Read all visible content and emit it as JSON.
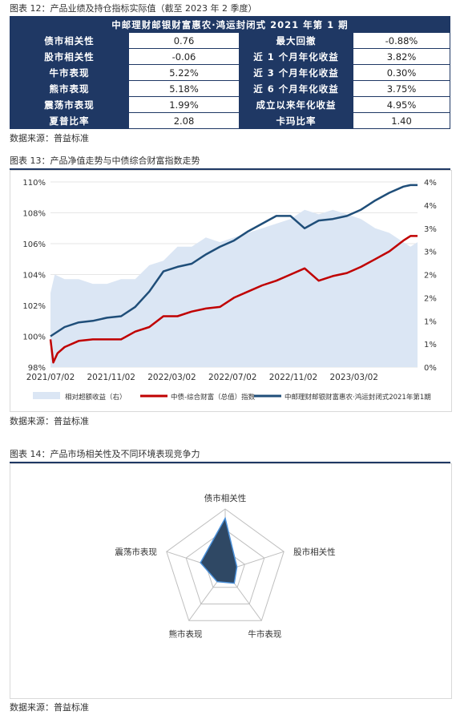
{
  "fig12": {
    "title": "图表 12：产品业绩及持仓指标实际值（截至 2023 年 2 季度）",
    "table_header": "中邮理财邮银财富惠农·鸿运封闭式 2021 年第 1 期",
    "rows": [
      {
        "l1": "债市相关性",
        "v1": "0.76",
        "l2": "最大回撤",
        "v2": "-0.88%"
      },
      {
        "l1": "股市相关性",
        "v1": "-0.06",
        "l2": "近 1 个月年化收益",
        "v2": "3.82%"
      },
      {
        "l1": "牛市表现",
        "v1": "5.22%",
        "l2": "近 3 个月年化收益",
        "v2": "0.30%"
      },
      {
        "l1": "熊市表现",
        "v1": "5.18%",
        "l2": "近 6 个月年化收益",
        "v2": "3.75%"
      },
      {
        "l1": "震荡市表现",
        "v1": "1.99%",
        "l2": "成立以来年化收益",
        "v2": "4.95%"
      },
      {
        "l1": "夏普比率",
        "v1": "2.08",
        "l2": "卡玛比率",
        "v2": "1.40"
      }
    ],
    "source": "数据来源：普益标准"
  },
  "fig13": {
    "title": "图表 13：产品净值走势与中债综合财富指数走势",
    "source": "数据来源：普益标准"
  },
  "fig14": {
    "title": "图表 14：产品市场相关性及不同环境表现竞争力",
    "source": "数据来源：普益标准"
  },
  "chart_data": [
    {
      "type": "line",
      "x_ticks": [
        "2021/07/02",
        "2021/11/02",
        "2022/03/02",
        "2022/07/02",
        "2022/11/02",
        "2023/03/02"
      ],
      "y_left_ticks": [
        "98%",
        "100%",
        "102%",
        "104%",
        "106%",
        "108%",
        "110%"
      ],
      "y_right_ticks": [
        "0%",
        "1%",
        "1%",
        "2%",
        "2%",
        "3%",
        "3%",
        "4%",
        "4%"
      ],
      "ylim_left": [
        98,
        110
      ],
      "ylim_right": [
        0,
        4
      ],
      "x_months_range": [
        0,
        26
      ],
      "grid": true,
      "legend_position": "bottom",
      "colors": {
        "area": "#dbe6f4",
        "index": "#c00000",
        "product": "#1f4e79"
      },
      "series": [
        {
          "name": "相对超额收益（右）",
          "kind": "area",
          "axis": "right",
          "x": [
            0,
            0.3,
            1,
            2,
            3,
            4,
            5,
            6,
            7,
            8,
            9,
            10,
            11,
            12,
            13,
            14,
            15,
            16,
            17,
            18,
            19,
            20,
            21,
            22,
            23,
            24,
            25,
            25.5,
            26
          ],
          "values": [
            1.6,
            2.0,
            1.9,
            1.9,
            1.8,
            1.8,
            1.9,
            1.9,
            2.2,
            2.3,
            2.6,
            2.6,
            2.8,
            2.7,
            2.8,
            2.9,
            3.0,
            3.1,
            3.2,
            3.4,
            3.3,
            3.4,
            3.3,
            3.2,
            3.0,
            2.9,
            2.7,
            2.6,
            2.7
          ]
        },
        {
          "name": "中债-综合财富（总值）指数",
          "kind": "line",
          "axis": "left",
          "x": [
            0,
            0.2,
            0.5,
            1,
            2,
            3,
            4,
            5,
            6,
            7,
            8,
            9,
            10,
            11,
            12,
            13,
            14,
            15,
            16,
            17,
            18,
            19,
            20,
            21,
            22,
            23,
            24,
            25,
            25.5,
            26
          ],
          "values": [
            99.8,
            98.3,
            98.9,
            99.3,
            99.7,
            99.8,
            99.8,
            99.8,
            100.3,
            100.6,
            101.3,
            101.3,
            101.6,
            101.8,
            101.9,
            102.5,
            102.9,
            103.3,
            103.6,
            104.0,
            104.4,
            103.6,
            103.9,
            104.1,
            104.5,
            105.0,
            105.5,
            106.2,
            106.5,
            106.5
          ]
        },
        {
          "name": "中邮理财邮银财富惠农·鸿运封闭式2021年第1期",
          "kind": "line",
          "axis": "left",
          "x": [
            0,
            1,
            2,
            3,
            4,
            5,
            6,
            7,
            8,
            9,
            10,
            11,
            12,
            13,
            14,
            15,
            16,
            17,
            18,
            19,
            20,
            21,
            22,
            23,
            24,
            25,
            25.5,
            26
          ],
          "values": [
            100.0,
            100.6,
            100.9,
            101.0,
            101.2,
            101.3,
            101.9,
            102.9,
            104.2,
            104.5,
            104.7,
            105.3,
            105.8,
            106.2,
            106.8,
            107.3,
            107.8,
            107.8,
            107.0,
            107.5,
            107.6,
            107.8,
            108.2,
            108.8,
            109.3,
            109.7,
            109.8,
            109.8
          ]
        }
      ]
    },
    {
      "type": "radar",
      "axes": [
        "债市相关性",
        "股市相关性",
        "牛市表现",
        "熊市表现",
        "震荡市表现"
      ],
      "values": [
        0.85,
        0.2,
        0.25,
        0.22,
        0.42
      ],
      "rings": 3,
      "colors": {
        "fill": "#2f4864",
        "stroke": "#4a90d9",
        "grid": "#bfbfbf"
      }
    }
  ]
}
